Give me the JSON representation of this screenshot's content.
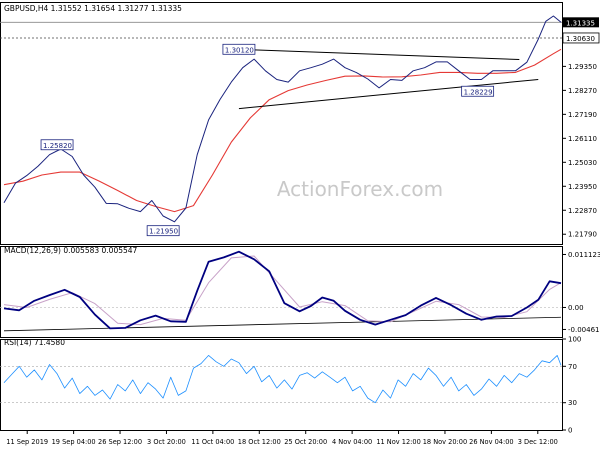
{
  "chart_data": {
    "type": "line",
    "instrument_header": "GBPUSD,H4  1.31552 1.31654 1.31277 1.31335",
    "watermark": "ActionForex.com",
    "colors": {
      "price": "#1a237e",
      "ema": "#e53935",
      "trendline": "#000000",
      "macd": "#000080",
      "signal": "#c8a2c8",
      "rsi": "#1e90ff"
    },
    "x_labels": [
      "11 Sep 2019",
      "19 Sep 04:00",
      "26 Sep 12:00",
      "3 Oct 20:00",
      "11 Oct 04:00",
      "18 Oct 12:00",
      "25 Oct 20:00",
      "4 Nov 04:00",
      "11 Nov 12:00",
      "18 Nov 20:00",
      "26 Nov 04:00",
      "3 Dec 12:00"
    ],
    "price_panel": {
      "ylim": [
        1.2135,
        1.3225
      ],
      "ticks": [
        "1.31335",
        "1.30630",
        "1.29350",
        "1.28270",
        "1.27190",
        "1.26110",
        "1.25030",
        "1.23950",
        "1.22870",
        "1.21790"
      ],
      "current_price": 1.31335,
      "current_price_label": "1.31335",
      "level_line": 1.3063,
      "level_line_label": "1.30630",
      "annotations": [
        {
          "label": "1.30120",
          "x_index": 62,
          "value": 1.3012
        },
        {
          "label": "1.25820",
          "x_index": 14,
          "value": 1.2582
        },
        {
          "label": "1.21950",
          "x_index": 42,
          "value": 1.2195
        },
        {
          "label": "1.28229",
          "x_index": 125,
          "value": 1.2823
        }
      ],
      "trendlines": [
        {
          "points": [
            [
              62,
              1.3012
            ],
            [
              136,
              1.2966
            ]
          ]
        },
        {
          "points": [
            [
              62,
              1.2745
            ],
            [
              141,
              1.2876
            ]
          ]
        }
      ],
      "price_series": [
        {
          "x": 0,
          "y": 1.2321
        },
        {
          "x": 3,
          "y": 1.2409
        },
        {
          "x": 6,
          "y": 1.2443
        },
        {
          "x": 9,
          "y": 1.2486
        },
        {
          "x": 12,
          "y": 1.2537
        },
        {
          "x": 15,
          "y": 1.2563
        },
        {
          "x": 18,
          "y": 1.2529
        },
        {
          "x": 21,
          "y": 1.2446
        },
        {
          "x": 24,
          "y": 1.2391
        },
        {
          "x": 27,
          "y": 1.2318
        },
        {
          "x": 30,
          "y": 1.2316
        },
        {
          "x": 33,
          "y": 1.2296
        },
        {
          "x": 36,
          "y": 1.2281
        },
        {
          "x": 39,
          "y": 1.2331
        },
        {
          "x": 42,
          "y": 1.2261
        },
        {
          "x": 45,
          "y": 1.2235
        },
        {
          "x": 48,
          "y": 1.2297
        },
        {
          "x": 51,
          "y": 1.2537
        },
        {
          "x": 54,
          "y": 1.2694
        },
        {
          "x": 57,
          "y": 1.2786
        },
        {
          "x": 60,
          "y": 1.2864
        },
        {
          "x": 63,
          "y": 1.2929
        },
        {
          "x": 66,
          "y": 1.2968
        },
        {
          "x": 69,
          "y": 1.2915
        },
        {
          "x": 72,
          "y": 1.2876
        },
        {
          "x": 75,
          "y": 1.2864
        },
        {
          "x": 78,
          "y": 1.2915
        },
        {
          "x": 81,
          "y": 1.2929
        },
        {
          "x": 84,
          "y": 1.2945
        },
        {
          "x": 87,
          "y": 1.2968
        },
        {
          "x": 90,
          "y": 1.2929
        },
        {
          "x": 93,
          "y": 1.2907
        },
        {
          "x": 96,
          "y": 1.2878
        },
        {
          "x": 99,
          "y": 1.2838
        },
        {
          "x": 102,
          "y": 1.2876
        },
        {
          "x": 105,
          "y": 1.2872
        },
        {
          "x": 108,
          "y": 1.2915
        },
        {
          "x": 111,
          "y": 1.2929
        },
        {
          "x": 114,
          "y": 1.2955
        },
        {
          "x": 117,
          "y": 1.2955
        },
        {
          "x": 120,
          "y": 1.2915
        },
        {
          "x": 123,
          "y": 1.2876
        },
        {
          "x": 126,
          "y": 1.2876
        },
        {
          "x": 129,
          "y": 1.2915
        },
        {
          "x": 132,
          "y": 1.2915
        },
        {
          "x": 135,
          "y": 1.2915
        },
        {
          "x": 138,
          "y": 1.2954
        },
        {
          "x": 141,
          "y": 1.3058
        },
        {
          "x": 143,
          "y": 1.3138
        },
        {
          "x": 145,
          "y": 1.3162
        },
        {
          "x": 147,
          "y": 1.3134
        }
      ],
      "ema_series": [
        {
          "x": 0,
          "y": 1.2402
        },
        {
          "x": 5,
          "y": 1.2418
        },
        {
          "x": 10,
          "y": 1.2446
        },
        {
          "x": 15,
          "y": 1.2459
        },
        {
          "x": 20,
          "y": 1.2459
        },
        {
          "x": 25,
          "y": 1.2419
        },
        {
          "x": 30,
          "y": 1.2376
        },
        {
          "x": 35,
          "y": 1.2331
        },
        {
          "x": 40,
          "y": 1.2304
        },
        {
          "x": 45,
          "y": 1.2281
        },
        {
          "x": 50,
          "y": 1.2308
        },
        {
          "x": 55,
          "y": 1.2446
        },
        {
          "x": 60,
          "y": 1.2594
        },
        {
          "x": 65,
          "y": 1.2703
        },
        {
          "x": 70,
          "y": 1.2785
        },
        {
          "x": 75,
          "y": 1.2826
        },
        {
          "x": 80,
          "y": 1.2851
        },
        {
          "x": 85,
          "y": 1.2872
        },
        {
          "x": 90,
          "y": 1.2891
        },
        {
          "x": 95,
          "y": 1.2892
        },
        {
          "x": 100,
          "y": 1.2887
        },
        {
          "x": 105,
          "y": 1.2888
        },
        {
          "x": 110,
          "y": 1.2896
        },
        {
          "x": 115,
          "y": 1.2908
        },
        {
          "x": 120,
          "y": 1.2908
        },
        {
          "x": 125,
          "y": 1.2904
        },
        {
          "x": 130,
          "y": 1.2904
        },
        {
          "x": 135,
          "y": 1.2908
        },
        {
          "x": 140,
          "y": 1.2941
        },
        {
          "x": 145,
          "y": 1.2992
        },
        {
          "x": 147,
          "y": 1.3012
        }
      ]
    },
    "macd_panel": {
      "label": "MACD(12,26,9) 0.005583 0.005547",
      "ylim": [
        -0.0062,
        0.0129
      ],
      "ticks": [
        "0.011123",
        "0.00",
        "-0.004617"
      ],
      "trendline": {
        "points": [
          [
            0,
            -0.0049
          ],
          [
            147,
            -0.00205
          ]
        ]
      },
      "macd_series": [
        {
          "x": 0,
          "y": -0.0002
        },
        {
          "x": 4,
          "y": -0.0006
        },
        {
          "x": 8,
          "y": 0.0014
        },
        {
          "x": 12,
          "y": 0.0026
        },
        {
          "x": 16,
          "y": 0.0037
        },
        {
          "x": 20,
          "y": 0.0022
        },
        {
          "x": 24,
          "y": -0.0015
        },
        {
          "x": 28,
          "y": -0.0044
        },
        {
          "x": 32,
          "y": -0.0043
        },
        {
          "x": 36,
          "y": -0.0027
        },
        {
          "x": 40,
          "y": -0.0017
        },
        {
          "x": 44,
          "y": -0.0029
        },
        {
          "x": 48,
          "y": -0.003
        },
        {
          "x": 51,
          "y": 0.0035
        },
        {
          "x": 54,
          "y": 0.0096
        },
        {
          "x": 58,
          "y": 0.0105
        },
        {
          "x": 62,
          "y": 0.0117
        },
        {
          "x": 66,
          "y": 0.0101
        },
        {
          "x": 70,
          "y": 0.0076
        },
        {
          "x": 74,
          "y": 0.0009
        },
        {
          "x": 78,
          "y": -0.0008
        },
        {
          "x": 81,
          "y": 0.0003
        },
        {
          "x": 84,
          "y": 0.0021
        },
        {
          "x": 87,
          "y": 0.0014
        },
        {
          "x": 90,
          "y": -0.0007
        },
        {
          "x": 94,
          "y": -0.0026
        },
        {
          "x": 98,
          "y": -0.0036
        },
        {
          "x": 102,
          "y": -0.0026
        },
        {
          "x": 106,
          "y": -0.0016
        },
        {
          "x": 110,
          "y": 0.0004
        },
        {
          "x": 114,
          "y": 0.002
        },
        {
          "x": 118,
          "y": 0.0005
        },
        {
          "x": 122,
          "y": -0.0013
        },
        {
          "x": 126,
          "y": -0.0026
        },
        {
          "x": 130,
          "y": -0.0019
        },
        {
          "x": 134,
          "y": -0.0018
        },
        {
          "x": 138,
          "y": 0.0
        },
        {
          "x": 141,
          "y": 0.0016
        },
        {
          "x": 144,
          "y": 0.0055
        },
        {
          "x": 147,
          "y": 0.0051
        }
      ],
      "signal_series": [
        {
          "x": 0,
          "y": 0.0006
        },
        {
          "x": 6,
          "y": 0.0
        },
        {
          "x": 12,
          "y": 0.0017
        },
        {
          "x": 18,
          "y": 0.0031
        },
        {
          "x": 24,
          "y": 0.0008
        },
        {
          "x": 30,
          "y": -0.0033
        },
        {
          "x": 36,
          "y": -0.0036
        },
        {
          "x": 42,
          "y": -0.0023
        },
        {
          "x": 48,
          "y": -0.0027
        },
        {
          "x": 54,
          "y": 0.0052
        },
        {
          "x": 60,
          "y": 0.0104
        },
        {
          "x": 66,
          "y": 0.0108
        },
        {
          "x": 72,
          "y": 0.0055
        },
        {
          "x": 78,
          "y": 0.0001
        },
        {
          "x": 84,
          "y": 0.0012
        },
        {
          "x": 90,
          "y": 0.0004
        },
        {
          "x": 96,
          "y": -0.0028
        },
        {
          "x": 102,
          "y": -0.003
        },
        {
          "x": 108,
          "y": -0.0009
        },
        {
          "x": 114,
          "y": 0.0013
        },
        {
          "x": 120,
          "y": 0.0006
        },
        {
          "x": 126,
          "y": -0.002
        },
        {
          "x": 132,
          "y": -0.0021
        },
        {
          "x": 138,
          "y": -0.0009
        },
        {
          "x": 144,
          "y": 0.0038
        },
        {
          "x": 147,
          "y": 0.0052
        }
      ]
    },
    "rsi_panel": {
      "label": "RSI(14) 71.4580",
      "ylim": [
        0,
        100
      ],
      "ticks": [
        "100",
        "70",
        "30",
        "0"
      ],
      "levels": [
        70,
        30
      ],
      "rsi_series": [
        {
          "x": 0,
          "y": 52
        },
        {
          "x": 2,
          "y": 61
        },
        {
          "x": 4,
          "y": 70
        },
        {
          "x": 6,
          "y": 58
        },
        {
          "x": 8,
          "y": 66
        },
        {
          "x": 10,
          "y": 55
        },
        {
          "x": 12,
          "y": 72
        },
        {
          "x": 14,
          "y": 62
        },
        {
          "x": 16,
          "y": 46
        },
        {
          "x": 18,
          "y": 57
        },
        {
          "x": 20,
          "y": 40
        },
        {
          "x": 22,
          "y": 48
        },
        {
          "x": 24,
          "y": 38
        },
        {
          "x": 26,
          "y": 44
        },
        {
          "x": 28,
          "y": 34
        },
        {
          "x": 30,
          "y": 50
        },
        {
          "x": 32,
          "y": 43
        },
        {
          "x": 34,
          "y": 55
        },
        {
          "x": 36,
          "y": 40
        },
        {
          "x": 38,
          "y": 52
        },
        {
          "x": 40,
          "y": 45
        },
        {
          "x": 42,
          "y": 35
        },
        {
          "x": 44,
          "y": 58
        },
        {
          "x": 46,
          "y": 38
        },
        {
          "x": 48,
          "y": 43
        },
        {
          "x": 50,
          "y": 68
        },
        {
          "x": 52,
          "y": 73
        },
        {
          "x": 54,
          "y": 82
        },
        {
          "x": 56,
          "y": 75
        },
        {
          "x": 58,
          "y": 70
        },
        {
          "x": 60,
          "y": 78
        },
        {
          "x": 62,
          "y": 74
        },
        {
          "x": 64,
          "y": 62
        },
        {
          "x": 66,
          "y": 70
        },
        {
          "x": 68,
          "y": 53
        },
        {
          "x": 70,
          "y": 60
        },
        {
          "x": 72,
          "y": 46
        },
        {
          "x": 74,
          "y": 55
        },
        {
          "x": 76,
          "y": 45
        },
        {
          "x": 78,
          "y": 60
        },
        {
          "x": 80,
          "y": 63
        },
        {
          "x": 82,
          "y": 57
        },
        {
          "x": 84,
          "y": 64
        },
        {
          "x": 86,
          "y": 58
        },
        {
          "x": 88,
          "y": 52
        },
        {
          "x": 90,
          "y": 58
        },
        {
          "x": 92,
          "y": 43
        },
        {
          "x": 94,
          "y": 48
        },
        {
          "x": 96,
          "y": 35
        },
        {
          "x": 98,
          "y": 30
        },
        {
          "x": 100,
          "y": 44
        },
        {
          "x": 102,
          "y": 35
        },
        {
          "x": 104,
          "y": 55
        },
        {
          "x": 106,
          "y": 48
        },
        {
          "x": 108,
          "y": 62
        },
        {
          "x": 110,
          "y": 55
        },
        {
          "x": 112,
          "y": 68
        },
        {
          "x": 114,
          "y": 60
        },
        {
          "x": 116,
          "y": 48
        },
        {
          "x": 118,
          "y": 58
        },
        {
          "x": 120,
          "y": 43
        },
        {
          "x": 122,
          "y": 50
        },
        {
          "x": 124,
          "y": 38
        },
        {
          "x": 126,
          "y": 45
        },
        {
          "x": 128,
          "y": 56
        },
        {
          "x": 130,
          "y": 48
        },
        {
          "x": 132,
          "y": 60
        },
        {
          "x": 134,
          "y": 52
        },
        {
          "x": 136,
          "y": 62
        },
        {
          "x": 138,
          "y": 58
        },
        {
          "x": 140,
          "y": 66
        },
        {
          "x": 142,
          "y": 76
        },
        {
          "x": 144,
          "y": 74
        },
        {
          "x": 146,
          "y": 82
        },
        {
          "x": 147,
          "y": 71
        }
      ]
    }
  }
}
